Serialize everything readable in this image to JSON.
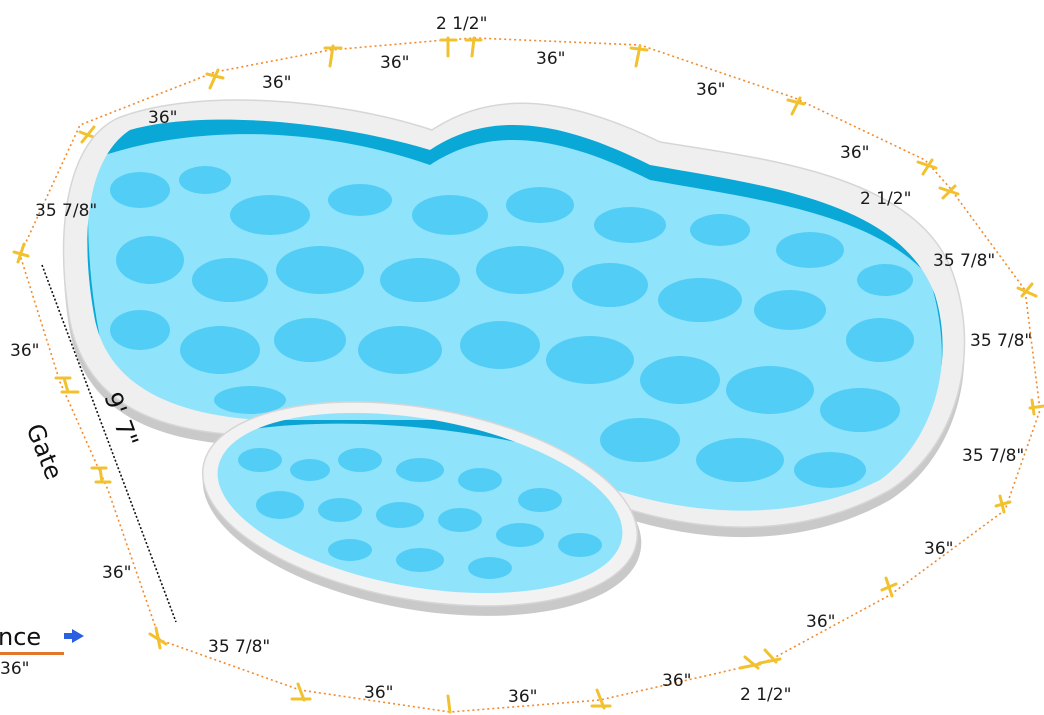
{
  "labels": {
    "top_gap": "2 1/2\"",
    "top_l1": "36\"",
    "top_l2": "36\"",
    "top_l3": "36\"",
    "top_r1": "36\"",
    "top_r2": "36\"",
    "top_r3": "36\"",
    "left_upper": "35 7/8\"",
    "right_gap": "2 1/2\"",
    "right_1": "35 7/8\"",
    "right_2": "35 7/8\"",
    "right_3": "35 7/8\"",
    "left_mid": "36\"",
    "gate": "Gate",
    "gate_width": "9' 7\"",
    "left_lower": "36\"",
    "bottom_left": "35 7/8\"",
    "bottom_1": "36\"",
    "bottom_2": "36\"",
    "bottom_3": "36\"",
    "bottom_4": "36\"",
    "bottom_5": "36\"",
    "bottom_gap": "2 1/2\"",
    "fence_label": "nce",
    "fence_sub": "36\""
  },
  "colors": {
    "fence": "#f28a2e",
    "posts": "#f2c12e",
    "water": "#5fd3f7",
    "deck": "#ececec",
    "arrow": "#2b5fe0"
  },
  "icons": {
    "arrow": "right-arrow-icon"
  }
}
